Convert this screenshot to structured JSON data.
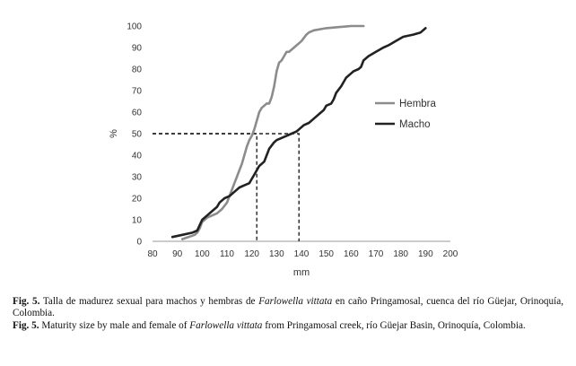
{
  "chart_data": {
    "type": "line",
    "xlabel": "mm",
    "ylabel": "%",
    "xlim": [
      80,
      200
    ],
    "ylim": [
      0,
      100
    ],
    "xticks": [
      80,
      90,
      100,
      110,
      120,
      130,
      140,
      150,
      160,
      170,
      180,
      190,
      200
    ],
    "yticks": [
      0,
      10,
      20,
      30,
      40,
      50,
      60,
      70,
      80,
      90,
      100
    ],
    "grid": false,
    "legend_position": "right",
    "series": [
      {
        "name": "Hembra",
        "color": "#8c8c8c",
        "x": [
          92,
          97,
          98,
          99,
          100,
          102,
          104,
          106,
          108,
          110,
          111,
          112,
          113,
          114,
          115,
          116,
          117,
          118,
          119,
          120,
          121,
          122,
          123,
          124,
          125,
          126,
          127,
          128,
          129,
          130,
          131,
          132,
          133,
          134,
          135,
          136,
          137,
          138,
          140,
          142,
          143,
          145,
          150,
          155,
          160,
          165
        ],
        "y": [
          1,
          3,
          4,
          6,
          9,
          11,
          12,
          13,
          15,
          18,
          21,
          24,
          27,
          30,
          33,
          36,
          40,
          44,
          47,
          49,
          52,
          56,
          60,
          62,
          63,
          64,
          64,
          67,
          72,
          79,
          83,
          84,
          86,
          88,
          88,
          89,
          90,
          91,
          93,
          96,
          97,
          98,
          99,
          99.5,
          100,
          100
        ]
      },
      {
        "name": "Macho",
        "color": "#222222",
        "x": [
          88,
          92,
          96,
          98,
          100,
          102,
          104,
          106,
          107,
          109,
          111,
          113,
          115,
          117,
          119,
          120,
          121,
          122,
          123,
          125,
          126,
          127,
          129,
          130,
          132,
          134,
          136,
          138,
          140,
          141,
          143,
          145,
          147,
          149,
          150,
          152,
          153,
          154,
          156,
          157,
          158,
          160,
          161,
          163,
          164,
          165,
          167,
          170,
          173,
          175,
          178,
          181,
          185,
          188,
          190
        ],
        "y": [
          2,
          3,
          4,
          5,
          10,
          12,
          14,
          16,
          18,
          20,
          21,
          23,
          25,
          26,
          27,
          29,
          31,
          33,
          35,
          37,
          40,
          43,
          46,
          47,
          48,
          49,
          50,
          51,
          53,
          54,
          55,
          57,
          59,
          61,
          63,
          64,
          66,
          69,
          72,
          74,
          76,
          78,
          79,
          80,
          81,
          84,
          86,
          88,
          90,
          91,
          93,
          95,
          96,
          97,
          99
        ]
      }
    ],
    "annotations": [
      {
        "type": "dashed-guide",
        "x": 122,
        "y": 50
      },
      {
        "type": "dashed-guide",
        "x": 139,
        "y": 50
      }
    ]
  },
  "caption": {
    "es": {
      "label": "Fig. 5.",
      "before": " Talla de madurez sexual para machos y hembras de ",
      "species": "Farlowella vittata",
      "after": " en caño Pringamosal, cuenca del río Güejar, Orinoquía, Colombia."
    },
    "en": {
      "label": "Fig. 5.",
      "before": " Maturity size by male and female of ",
      "species": "Farlowella vittata",
      "after": " from Pringamosal creek, río Güejar Basin, Orinoquía, Colombia."
    }
  }
}
